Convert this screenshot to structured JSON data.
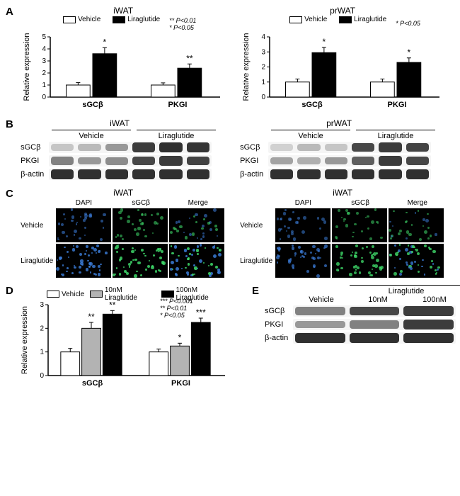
{
  "panels": {
    "A": {
      "iwat": {
        "title": "iWAT",
        "ylabel": "Relative expression",
        "groups": [
          "sGCβ",
          "PKGI"
        ],
        "series": [
          {
            "name": "Vehicle",
            "color": "#ffffff",
            "border": "#000000",
            "values": [
              1.0,
              1.0
            ],
            "err": [
              0.2,
              0.18
            ]
          },
          {
            "name": "Liraglutide",
            "color": "#000000",
            "border": "#000000",
            "values": [
              3.6,
              2.4
            ],
            "err": [
              0.5,
              0.35
            ]
          }
        ],
        "sig": [
          "*",
          "**"
        ],
        "pvals": [
          "** P<0.01",
          "* P<0.05"
        ],
        "ylim": [
          0,
          5
        ],
        "yticks": [
          0,
          1,
          2,
          3,
          4,
          5
        ]
      },
      "prwat": {
        "title": "prWAT",
        "ylabel": "Relative expression",
        "groups": [
          "sGCβ",
          "PKGI"
        ],
        "series": [
          {
            "name": "Vehicle",
            "color": "#ffffff",
            "border": "#000000",
            "values": [
              1.0,
              1.0
            ],
            "err": [
              0.2,
              0.2
            ]
          },
          {
            "name": "Liraglutide",
            "color": "#000000",
            "border": "#000000",
            "values": [
              2.95,
              2.3
            ],
            "err": [
              0.35,
              0.3
            ]
          }
        ],
        "sig": [
          "*",
          "*"
        ],
        "pvals": [
          "* P<0.05"
        ],
        "ylim": [
          0,
          4
        ],
        "yticks": [
          0,
          1,
          2,
          3,
          4
        ]
      }
    },
    "B": {
      "iwat": {
        "title": "iWAT",
        "treatments": [
          "Vehicle",
          "Liraglutide"
        ],
        "rows": [
          {
            "label": "sGCβ",
            "bands": [
              0.25,
              0.3,
              0.45,
              0.85,
              0.9,
              0.88
            ]
          },
          {
            "label": "PKGI",
            "bands": [
              0.55,
              0.45,
              0.5,
              0.8,
              0.85,
              0.82
            ]
          },
          {
            "label": "β-actin",
            "bands": [
              0.9,
              0.9,
              0.9,
              0.9,
              0.9,
              0.9
            ]
          }
        ]
      },
      "prwat": {
        "title": "prWAT",
        "treatments": [
          "Vehicle",
          "Liraglutide"
        ],
        "rows": [
          {
            "label": "sGCβ",
            "bands": [
              0.2,
              0.3,
              0.25,
              0.8,
              0.85,
              0.82
            ]
          },
          {
            "label": "PKGI",
            "bands": [
              0.4,
              0.35,
              0.45,
              0.7,
              0.85,
              0.8
            ]
          },
          {
            "label": "β-actin",
            "bands": [
              0.9,
              0.9,
              0.9,
              0.9,
              0.9,
              0.9
            ]
          }
        ]
      }
    },
    "C": {
      "left": {
        "title": "iWAT",
        "cols": [
          "DAPI",
          "sGCβ",
          "Merge"
        ],
        "rows": [
          "Vehicle",
          "Liraglutide"
        ],
        "dapi_color": "#3a7bd5",
        "sig_color": "#3fdc6b",
        "bg": "#000000",
        "intensity": [
          [
            0.3,
            0.25,
            0.3
          ],
          [
            0.7,
            0.7,
            0.75
          ]
        ]
      },
      "right": {
        "title": "iWAT",
        "cols": [
          "DAPI",
          "sGCβ",
          "Merge"
        ],
        "rows": [
          "Vehicle",
          "Liraglutide"
        ],
        "dapi_color": "#3a7bd5",
        "sig_color": "#3fdc6b",
        "bg": "#000000",
        "intensity": [
          [
            0.25,
            0.2,
            0.25
          ],
          [
            0.5,
            0.6,
            0.65
          ]
        ]
      }
    },
    "D": {
      "ylabel": "Relative expression",
      "groups": [
        "sGCβ",
        "PKGI"
      ],
      "series": [
        {
          "name": "Vehicle",
          "color": "#ffffff",
          "border": "#000000",
          "values": [
            1.0,
            1.0
          ],
          "err": [
            0.15,
            0.12
          ]
        },
        {
          "name": "10nM Liraglutide",
          "color": "#b3b3b3",
          "border": "#000000",
          "values": [
            2.0,
            1.25
          ],
          "err": [
            0.25,
            0.12
          ]
        },
        {
          "name": "100nM Liraglutide",
          "color": "#000000",
          "border": "#000000",
          "values": [
            2.6,
            2.25
          ],
          "err": [
            0.15,
            0.18
          ]
        }
      ],
      "sig": [
        [
          "",
          "**",
          "**"
        ],
        [
          "",
          "*",
          "***"
        ]
      ],
      "pvals": [
        "*** P<0.001",
        "** P<0.01",
        "* P<0.05"
      ],
      "ylim": [
        0,
        3
      ],
      "yticks": [
        0,
        1,
        2,
        3
      ]
    },
    "E": {
      "treatments_top": "Liraglutide",
      "treatments": [
        "Vehicle",
        "10nM",
        "100nM"
      ],
      "rows": [
        {
          "label": "sGCβ",
          "bands": [
            0.55,
            0.8,
            0.85
          ]
        },
        {
          "label": "PKGI",
          "bands": [
            0.45,
            0.55,
            0.85
          ]
        },
        {
          "label": "β-actin",
          "bands": [
            0.9,
            0.9,
            0.9
          ]
        }
      ]
    }
  },
  "style": {
    "bg": "#ffffff",
    "axis_color": "#000000",
    "font": "Arial",
    "label_fontsize": 11
  }
}
